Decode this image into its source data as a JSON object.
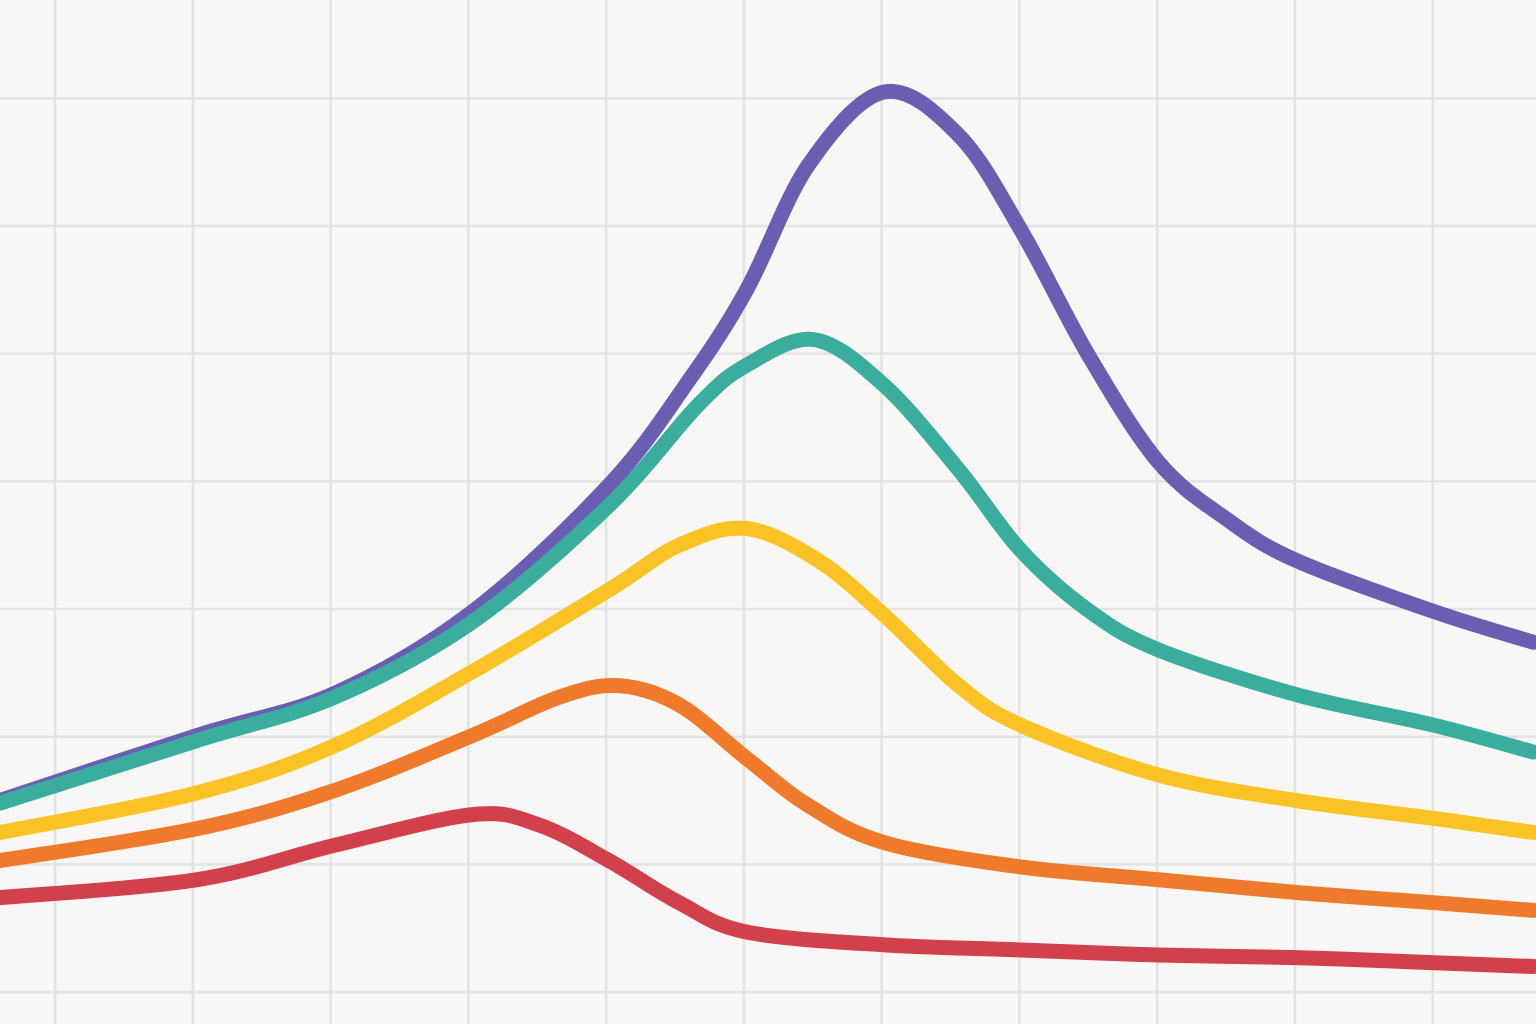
{
  "chart_data": {
    "type": "line",
    "title": "",
    "xlabel": "",
    "ylabel": "",
    "xlim": [
      -0.4,
      10.75
    ],
    "ylim": [
      -0.25,
      7.77
    ],
    "grid": true,
    "x_gridlines": [
      0,
      1,
      2,
      3,
      4,
      5,
      6,
      7,
      8,
      9,
      10
    ],
    "y_gridlines": [
      0,
      1,
      2,
      3,
      4,
      5,
      6,
      7
    ],
    "legend": "none",
    "series": [
      {
        "name": "purple",
        "color": "#6a5eb2",
        "points": [
          [
            -0.4,
            1.5
          ],
          [
            1.03,
            2.01
          ],
          [
            2.03,
            2.34
          ],
          [
            3.03,
            2.98
          ],
          [
            4.02,
            3.97
          ],
          [
            4.6,
            4.79
          ],
          [
            5.02,
            5.5
          ],
          [
            5.47,
            6.48
          ],
          [
            6.02,
            7.05
          ],
          [
            6.56,
            6.71
          ],
          [
            7.01,
            5.97
          ],
          [
            7.5,
            4.99
          ],
          [
            8.01,
            4.15
          ],
          [
            8.51,
            3.7
          ],
          [
            9.01,
            3.38
          ],
          [
            10.01,
            2.98
          ],
          [
            10.73,
            2.74
          ]
        ]
      },
      {
        "name": "teal",
        "color": "#3aad9f",
        "points": [
          [
            -0.4,
            1.48
          ],
          [
            1.03,
            1.97
          ],
          [
            2.03,
            2.31
          ],
          [
            3.03,
            2.9
          ],
          [
            4.02,
            3.81
          ],
          [
            4.67,
            4.6
          ],
          [
            5.02,
            4.91
          ],
          [
            5.51,
            5.11
          ],
          [
            6.02,
            4.75
          ],
          [
            6.56,
            4.09
          ],
          [
            7.01,
            3.46
          ],
          [
            7.5,
            2.99
          ],
          [
            8.01,
            2.68
          ],
          [
            9.01,
            2.33
          ],
          [
            10.01,
            2.09
          ],
          [
            10.73,
            1.88
          ]
        ]
      },
      {
        "name": "yellow",
        "color": "#fbc226",
        "points": [
          [
            -0.4,
            1.25
          ],
          [
            1.03,
            1.56
          ],
          [
            2.03,
            1.93
          ],
          [
            3.03,
            2.51
          ],
          [
            4.02,
            3.15
          ],
          [
            4.53,
            3.5
          ],
          [
            5.02,
            3.63
          ],
          [
            5.54,
            3.38
          ],
          [
            6.02,
            2.95
          ],
          [
            6.56,
            2.4
          ],
          [
            7.01,
            2.09
          ],
          [
            8.01,
            1.7
          ],
          [
            9.01,
            1.5
          ],
          [
            10.01,
            1.36
          ],
          [
            10.73,
            1.25
          ]
        ]
      },
      {
        "name": "orange",
        "color": "#f07a2b",
        "points": [
          [
            -0.4,
            1.03
          ],
          [
            1.03,
            1.28
          ],
          [
            2.03,
            1.58
          ],
          [
            3.03,
            2.01
          ],
          [
            3.66,
            2.31
          ],
          [
            4.09,
            2.4
          ],
          [
            4.53,
            2.25
          ],
          [
            5.02,
            1.83
          ],
          [
            5.47,
            1.46
          ],
          [
            6.02,
            1.17
          ],
          [
            7.01,
            0.98
          ],
          [
            8.01,
            0.88
          ],
          [
            9.01,
            0.78
          ],
          [
            10.01,
            0.7
          ],
          [
            10.73,
            0.64
          ]
        ]
      },
      {
        "name": "red",
        "color": "#d2404b",
        "points": [
          [
            -0.4,
            0.74
          ],
          [
            1.03,
            0.88
          ],
          [
            2.03,
            1.15
          ],
          [
            3.03,
            1.39
          ],
          [
            3.51,
            1.31
          ],
          [
            4.02,
            1.03
          ],
          [
            4.53,
            0.7
          ],
          [
            5.02,
            0.47
          ],
          [
            6.02,
            0.37
          ],
          [
            7.01,
            0.33
          ],
          [
            8.01,
            0.29
          ],
          [
            9.01,
            0.27
          ],
          [
            10.01,
            0.23
          ],
          [
            10.73,
            0.2
          ]
        ]
      }
    ]
  }
}
